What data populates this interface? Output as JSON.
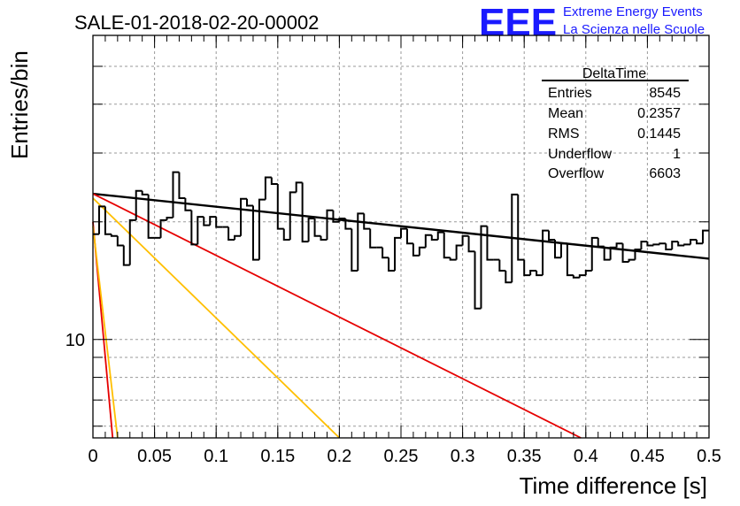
{
  "chart_data": {
    "type": "histogram",
    "title": "SALE-01-2018-02-20-00002",
    "xlabel": "Time difference [s]",
    "ylabel": "Entries/bin",
    "xlim": [
      0,
      0.5
    ],
    "ylim": [
      5.6,
      60
    ],
    "y_scale": "log",
    "grid": true,
    "x_ticks": [
      0,
      0.05,
      0.1,
      0.15,
      0.2,
      0.25,
      0.3,
      0.35,
      0.4,
      0.45,
      0.5
    ],
    "x_tick_labels": [
      "0",
      "0.05",
      "0.1",
      "0.15",
      "0.2",
      "0.25",
      "0.3",
      "0.35",
      "0.4",
      "0.45",
      "0.5"
    ],
    "y_ticks": [
      10
    ],
    "y_tick_labels": [
      "10"
    ],
    "bin_width": 0.005,
    "histogram": {
      "name": "DeltaTime",
      "bin_start": 0,
      "values": [
        18.6,
        21.9,
        18.6,
        18.4,
        17.4,
        15.5,
        20.2,
        24.0,
        23.5,
        18.2,
        18.2,
        20.2,
        20.5,
        26.8,
        23.0,
        21.4,
        17.5,
        20.6,
        19.6,
        20.6,
        19.4,
        19.4,
        18.0,
        18.4,
        22.9,
        22.0,
        16.0,
        22.8,
        26.0,
        25.0,
        19.2,
        18.0,
        23.8,
        25.2,
        17.8,
        20.4,
        18.4,
        18.0,
        21.4,
        20.0,
        20.4,
        19.2,
        15.0,
        21.0,
        19.2,
        17.2,
        17.2,
        16.2,
        15.0,
        18.2,
        19.2,
        17.6,
        16.4,
        17.2,
        18.5,
        18.0,
        18.8,
        16.2,
        16.0,
        17.4,
        18.4,
        16.8,
        12.0,
        19.5,
        16.0,
        16.0,
        15.0,
        14.0,
        23.5,
        16.0,
        14.6,
        15.0,
        14.6,
        19.0,
        18.0,
        16.2,
        17.6,
        14.6,
        14.4,
        14.6,
        15.0,
        18.2,
        17.3,
        16.0,
        17.2,
        17.6,
        15.8,
        16.0,
        17.0,
        17.8,
        17.4,
        17.5,
        17.6,
        17.0,
        17.8,
        17.4,
        17.5,
        18.0,
        17.6,
        19.0
      ],
      "entries": 8545,
      "mean": 0.2357,
      "rms": 0.1445,
      "underflow": 1,
      "overflow": 6603
    },
    "fit_lines": [
      {
        "color": "#000000",
        "x": [
          0,
          0.5
        ],
        "y": [
          23.6,
          16.1
        ]
      },
      {
        "color": "#e60000",
        "x": [
          0,
          0.396
        ],
        "y": [
          23.6,
          5.6
        ]
      },
      {
        "color": "#ffbf00",
        "x": [
          0,
          0.2
        ],
        "y": [
          23.0,
          5.6
        ]
      },
      {
        "color": "#e60000",
        "x": [
          0.0,
          0.016
        ],
        "y": [
          20.0,
          5.6
        ]
      },
      {
        "color": "#ffbf00",
        "x": [
          0.0,
          0.02
        ],
        "y": [
          19.5,
          5.6
        ]
      }
    ]
  },
  "stats_box": {
    "title": "DeltaTime",
    "rows": [
      {
        "label": "Entries",
        "value": "8545"
      },
      {
        "label": "Mean",
        "value": "0.2357"
      },
      {
        "label": "RMS",
        "value": "0.1445"
      },
      {
        "label": "Underflow",
        "value": "1"
      },
      {
        "label": "Overflow",
        "value": "6603"
      }
    ]
  },
  "logo": {
    "mark": "EEE",
    "line1": "Extreme Energy Events",
    "line2": "La Scienza nelle Scuole",
    "color": "#1a1aff"
  }
}
